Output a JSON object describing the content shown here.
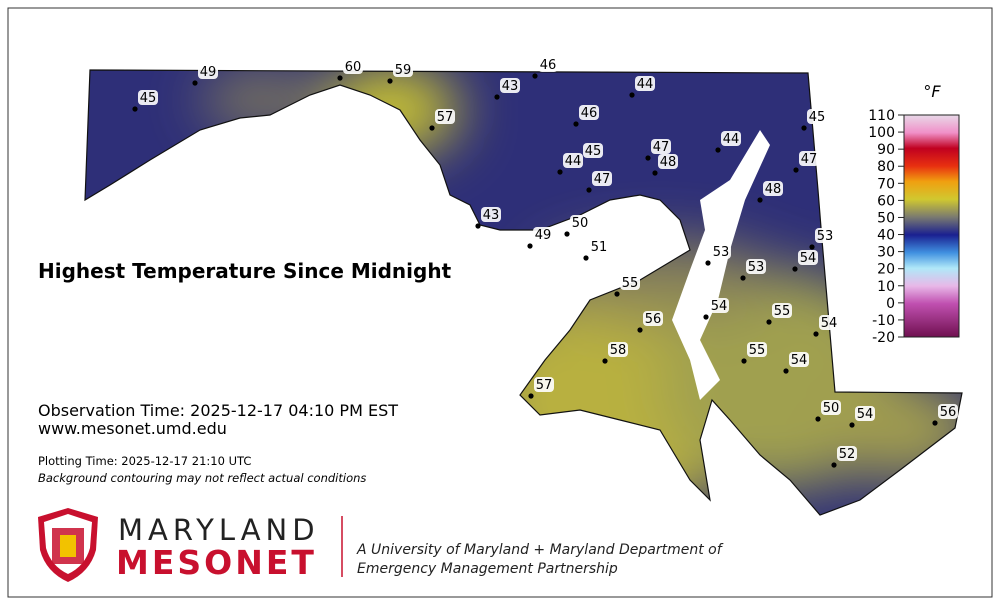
{
  "title": "Highest Temperature Since Midnight",
  "observation_time": "Observation Time: 2025-12-17 04:10 PM EST",
  "website": "www.mesonet.umd.edu",
  "plotting_time": "Plotting Time: 2025-12-17 21:10 UTC",
  "note": "Background contouring may not reflect actual conditions",
  "logo": {
    "line1": "MARYLAND",
    "line2": "MESONET"
  },
  "partnership": [
    "A University of Maryland + Maryland Department of",
    "Emergency Management Partnership"
  ],
  "colorbar": {
    "unit": "°F",
    "ticks": [
      110,
      100,
      90,
      80,
      70,
      60,
      50,
      40,
      30,
      20,
      10,
      0,
      -10,
      -20
    ]
  },
  "stations": [
    45,
    49,
    60,
    59,
    57,
    46,
    43,
    44,
    46,
    45,
    44,
    47,
    45,
    44,
    48,
    47,
    47,
    48,
    43,
    50,
    53,
    49,
    51,
    53,
    53,
    54,
    55,
    54,
    56,
    55,
    54,
    55,
    58,
    54,
    57,
    50,
    54,
    56,
    52
  ]
}
